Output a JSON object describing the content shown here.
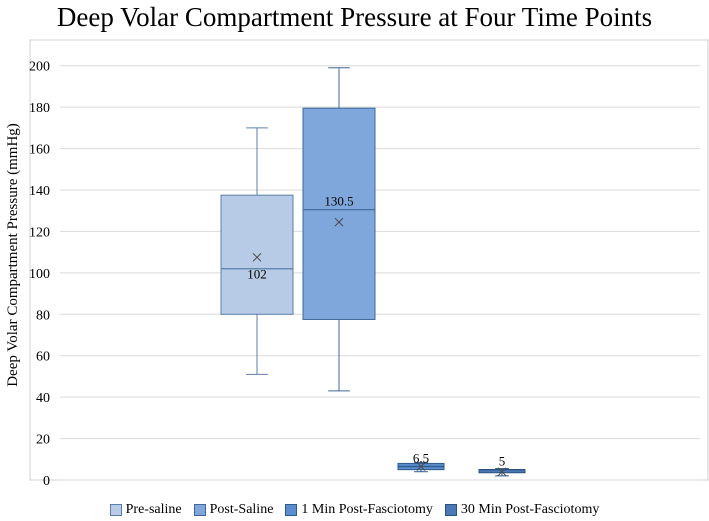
{
  "chart_data": {
    "type": "box",
    "title": "Deep Volar Compartment Pressure at Four Time Points",
    "xlabel": "",
    "ylabel": "Deep Volar Compartment Pressure (mmHg)",
    "ylim": [
      0,
      210
    ],
    "yticks": [
      0,
      20,
      40,
      60,
      80,
      100,
      120,
      140,
      160,
      180,
      200
    ],
    "grid": true,
    "legend_position": "bottom",
    "series": [
      {
        "name": "Pre-saline",
        "color": "#b7cbe6",
        "stroke": "#5b7fa8",
        "min": 51,
        "q1": 80,
        "median": 102,
        "q3": 137.5,
        "max": 170,
        "mean": 107.5,
        "median_label": "102"
      },
      {
        "name": "Post-Saline",
        "color": "#7fa7db",
        "stroke": "#3f6798",
        "min": 43,
        "q1": 77.5,
        "median": 130.5,
        "q3": 179.5,
        "max": 199,
        "mean": 124.5,
        "median_label": "130.5"
      },
      {
        "name": "1 Min Post-Fasciotomy",
        "color": "#5b8ccc",
        "stroke": "#2f5a8c",
        "min": 4,
        "q1": 5,
        "median": 6.5,
        "q3": 8,
        "max": 8.5,
        "mean": 6.5,
        "median_label": "6.5"
      },
      {
        "name": "30 Min Post-Fasciotomy",
        "color": "#4a79b5",
        "stroke": "#2b5282",
        "min": 2,
        "q1": 3.5,
        "median": 5,
        "q3": 5,
        "max": 5.5,
        "mean": 4,
        "median_label": "5"
      }
    ]
  }
}
